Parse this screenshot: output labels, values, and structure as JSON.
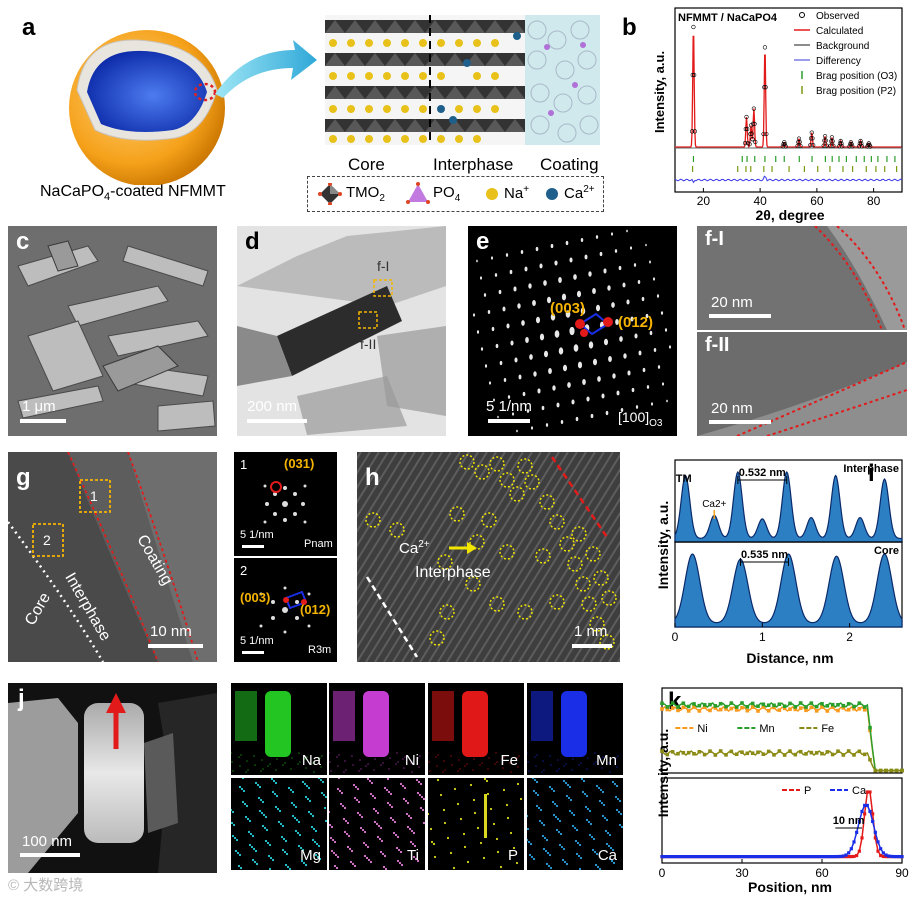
{
  "panels": {
    "a": "a",
    "b": "b",
    "c": "c",
    "d": "d",
    "e": "e",
    "f1": "f-I",
    "f2": "f-II",
    "g": "g",
    "h": "h",
    "i": "i",
    "j": "j",
    "k": "k"
  },
  "panel_a": {
    "caption_pre": "NaCaPO",
    "caption_sub": "4",
    "caption_post": "-coated NFMMT",
    "labels": {
      "core": "Core",
      "interphase": "Interphase",
      "coating": "Coating"
    },
    "legend": {
      "tmo2_pre": "TMO",
      "tmo2_sub": "2",
      "po4_pre": "PO",
      "po4_sub": "4",
      "na_pre": "Na",
      "na_sup": "+",
      "ca_pre": "Ca",
      "ca_sup": "2+"
    }
  },
  "panel_c": {
    "scale": "1 μm"
  },
  "panel_d": {
    "scale": "200  nm",
    "roi1": "f-I",
    "roi2": "f-II"
  },
  "panel_e": {
    "scale": "5 1/nm",
    "spot1": "(003)",
    "spot2": "(012)",
    "zone_pre": "[100]",
    "zone_sub": "O3"
  },
  "panel_f1": {
    "scale": "20 nm"
  },
  "panel_f2": {
    "scale": "20 nm"
  },
  "panel_g": {
    "scale": "10  nm",
    "roi1": "1",
    "roi2": "2",
    "core": "Core",
    "interphase": "Interphase",
    "coating": "Coating"
  },
  "panel_g1": {
    "num": "1",
    "spot": "(031)",
    "scale": "5  1/nm",
    "phase": "Pnam"
  },
  "panel_g2": {
    "num": "2",
    "spot1": "(003)",
    "spot2": "(012)",
    "scale": "5  1/nm",
    "phase": "R3m"
  },
  "panel_h": {
    "ca_pre": "Ca",
    "ca_sup": "2+",
    "interphase": "Interphase",
    "scale": "1  nm"
  },
  "panel_j": {
    "scale": "100  nm"
  },
  "eds_maps": [
    {
      "element": "Na",
      "color": "#22c522"
    },
    {
      "element": "Ni",
      "color": "#c43cd0"
    },
    {
      "element": "Fe",
      "color": "#e01818"
    },
    {
      "element": "Mn",
      "color": "#1a2ee8"
    },
    {
      "element": "Mg",
      "color": "#28d0d8"
    },
    {
      "element": "Ti",
      "color": "#e27cd6"
    },
    {
      "element": "P",
      "color": "#d8d820"
    },
    {
      "element": "Ca",
      "color": "#2aa2e0"
    }
  ],
  "watermark": "大数跨境",
  "chart_data": [
    {
      "type": "line",
      "panel": "b",
      "title": "NFMMT / NaCaPO4",
      "xlabel": "2θ, degree",
      "ylabel": "Intensity, a.u.",
      "xlim": [
        10,
        90
      ],
      "xticks": [
        20,
        40,
        60,
        80
      ],
      "legend": [
        "Observed",
        "Calculated",
        "Background",
        "Differency",
        "Brag position (O3)",
        "Brag position (P2)"
      ],
      "peaks": [
        {
          "x": 16.5,
          "h": 1.0
        },
        {
          "x": 35.2,
          "h": 0.25
        },
        {
          "x": 36.8,
          "h": 0.18
        },
        {
          "x": 37.8,
          "h": 0.32
        },
        {
          "x": 41.7,
          "h": 0.83
        },
        {
          "x": 48.5,
          "h": 0.04
        },
        {
          "x": 53.7,
          "h": 0.07
        },
        {
          "x": 58.2,
          "h": 0.12
        },
        {
          "x": 62.9,
          "h": 0.09
        },
        {
          "x": 65.3,
          "h": 0.08
        },
        {
          "x": 68.4,
          "h": 0.05
        },
        {
          "x": 72.0,
          "h": 0.04
        },
        {
          "x": 75.4,
          "h": 0.05
        },
        {
          "x": 78.3,
          "h": 0.03
        }
      ],
      "bragg_O3": [
        16.5,
        33.7,
        35.4,
        38.1,
        41.7,
        45.5,
        48.5,
        53.8,
        58.3,
        63.0,
        65.4,
        67.8,
        70.4,
        73.9,
        76.7,
        79.2,
        81.5,
        84.7,
        87.5
      ],
      "bragg_P2": [
        16.2,
        32.1,
        35.0,
        36.7,
        41.3,
        44.2,
        50.2,
        55.6,
        60.3,
        64.6,
        69.2,
        72.6,
        77.4,
        80.8,
        83.9,
        88.1
      ]
    },
    {
      "type": "area",
      "panel": "i",
      "xlabel": "Distance, nm",
      "ylabel": "Intensity, a.u.",
      "xlim": [
        0,
        2.6
      ],
      "xticks": [
        0,
        1,
        2
      ],
      "series": [
        {
          "name": "Interphase",
          "spacing": "0.532 nm",
          "peaks": [
            {
              "x": 0.12,
              "h": 0.9
            },
            {
              "x": 0.45,
              "h": 0.33
            },
            {
              "x": 0.72,
              "h": 0.95
            },
            {
              "x": 1.0,
              "h": 0.28
            },
            {
              "x": 1.28,
              "h": 0.95
            },
            {
              "x": 1.56,
              "h": 0.3
            },
            {
              "x": 1.84,
              "h": 0.9
            },
            {
              "x": 2.12,
              "h": 0.3
            },
            {
              "x": 2.4,
              "h": 0.85
            }
          ]
        },
        {
          "name": "Core",
          "spacing": "0.535 nm",
          "peaks": [
            {
              "x": 0.2,
              "h": 0.95
            },
            {
              "x": 0.75,
              "h": 0.88
            },
            {
              "x": 1.3,
              "h": 0.95
            },
            {
              "x": 1.85,
              "h": 0.92
            },
            {
              "x": 2.4,
              "h": 0.95
            }
          ]
        }
      ],
      "annotations": [
        "TM",
        "Ca2+"
      ]
    },
    {
      "type": "line",
      "panel": "k",
      "xlabel": "Position, nm",
      "ylabel": "Intensity, a.u.",
      "xlim": [
        0,
        90
      ],
      "xticks": [
        0,
        30,
        60,
        90
      ],
      "upper_series": [
        {
          "name": "Ni",
          "color": "#f79a1e",
          "level": 0.8,
          "drop_at": 77
        },
        {
          "name": "Mn",
          "color": "#2a9e2a",
          "level": 0.85,
          "drop_at": 77
        },
        {
          "name": "Fe",
          "color": "#8a8a14",
          "level": 0.25,
          "drop_at": 77
        }
      ],
      "lower_series": [
        {
          "name": "P",
          "color": "#e31a1a",
          "peak_x": 77.5,
          "peak_h": 0.85
        },
        {
          "name": "Ca",
          "color": "#1a2ee8",
          "peak_x": 76.5,
          "peak_h": 0.65
        }
      ],
      "annotation": "10 nm"
    }
  ]
}
